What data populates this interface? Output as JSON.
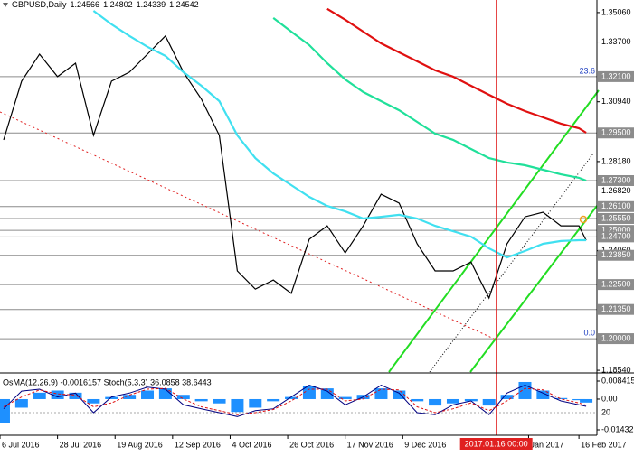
{
  "chart_data": [
    {
      "type": "line",
      "title": "GBPUSD,Daily",
      "ohlc": [
        1.24566,
        1.24802,
        1.24339,
        1.24542
      ],
      "x": [
        "2016-07-07",
        "2016-07-14",
        "2016-07-21",
        "2016-07-28",
        "2016-08-04",
        "2016-08-11",
        "2016-08-18",
        "2016-08-25",
        "2016-09-01",
        "2016-09-08",
        "2016-09-15",
        "2016-09-22",
        "2016-09-29",
        "2016-10-06",
        "2016-10-13",
        "2016-10-20",
        "2016-10-27",
        "2016-11-03",
        "2016-11-10",
        "2016-11-17",
        "2016-11-24",
        "2016-12-01",
        "2016-12-08",
        "2016-12-15",
        "2016-12-22",
        "2016-12-29",
        "2017-01-05",
        "2017-01-12",
        "2017-01-19",
        "2017-01-26",
        "2017-02-02",
        "2017-02-09",
        "2017-02-16",
        "2017-02-20"
      ],
      "series": [
        {
          "color": "#000000",
          "values": [
            1.2918,
            1.3189,
            1.3314,
            1.321,
            1.3272,
            1.2939,
            1.3189,
            1.3231,
            1.3314,
            1.3398,
            1.3231,
            1.3106,
            1.2939,
            1.2313,
            1.2229,
            1.2271,
            1.2209,
            1.2459,
            1.2521,
            1.2396,
            1.2521,
            1.2667,
            1.2626,
            1.2438,
            1.2313,
            1.2313,
            1.2354,
            1.2188,
            1.2438,
            1.2563,
            1.2584,
            1.2521,
            1.2521,
            1.24542
          ]
        },
        {
          "color": "#40e0f0",
          "values": [
            null,
            null,
            null,
            null,
            null,
            1.3514,
            1.3452,
            1.3398,
            1.3348,
            1.3306,
            1.3231,
            1.3168,
            1.3097,
            1.2939,
            1.2834,
            1.2763,
            1.2709,
            1.2655,
            1.2613,
            1.2588,
            1.2555,
            1.2563,
            1.2572,
            1.2555,
            1.2521,
            1.2496,
            1.2471,
            1.2417,
            1.2375,
            1.2405,
            1.2438,
            1.2451,
            1.2455,
            1.2455
          ]
        },
        {
          "color": "#20e09a",
          "values": [
            null,
            null,
            null,
            null,
            null,
            null,
            null,
            null,
            null,
            null,
            null,
            null,
            null,
            null,
            null,
            1.3481,
            1.3418,
            1.3356,
            1.3272,
            1.3197,
            1.3139,
            1.3097,
            1.3055,
            1.3001,
            1.2947,
            1.2918,
            1.2876,
            1.2834,
            1.2814,
            1.2801,
            1.278,
            1.2759,
            1.2743,
            1.273
          ]
        },
        {
          "color": "#e01010",
          "values": [
            null,
            null,
            null,
            null,
            null,
            null,
            null,
            null,
            null,
            null,
            null,
            null,
            null,
            null,
            null,
            null,
            null,
            null,
            1.3523,
            1.3473,
            1.3418,
            1.3364,
            1.3322,
            1.3281,
            1.3239,
            1.321,
            1.3168,
            1.3126,
            1.3085,
            1.3051,
            1.3022,
            1.2993,
            1.2972,
            1.2951
          ]
        }
      ],
      "xlim": [
        "2016-07-06",
        "2017-02-23"
      ],
      "xticks": [
        {
          "value": "2016-07-06",
          "label": "6 Jul 2016"
        },
        {
          "value": "2016-07-28",
          "label": "28 Jul 2016"
        },
        {
          "value": "2016-08-19",
          "label": "19 Aug 2016"
        },
        {
          "value": "2016-09-12",
          "label": "12 Sep 2016"
        },
        {
          "value": "2016-10-04",
          "label": "4 Oct 2016"
        },
        {
          "value": "2016-10-26",
          "label": "26 Oct 2016"
        },
        {
          "value": "2016-11-17",
          "label": "17 Nov 2016"
        },
        {
          "value": "2016-12-09",
          "label": "9 Dec 2016"
        },
        {
          "value": "2017-01-27",
          "label": "Jan 2017"
        },
        {
          "value": "2017-02-16",
          "label": "16 Feb 2017"
        }
      ],
      "ylim": [
        1.1846,
        1.3564
      ],
      "yticks": [
        {
          "value": 1.3506,
          "label": "1.35060"
        },
        {
          "value": 1.337,
          "label": "1.33700"
        },
        {
          "value": 1.3094,
          "label": "1.30940"
        },
        {
          "value": 1.2818,
          "label": "1.28180"
        },
        {
          "value": 1.2682,
          "label": "1.26820"
        },
        {
          "value": 1.2406,
          "label": "1.24060"
        },
        {
          "value": 1.1854,
          "label": "1.18540"
        }
      ],
      "levels": [
        {
          "value": 1.321,
          "label": "1.32100"
        },
        {
          "value": 1.295,
          "label": "1.29500"
        },
        {
          "value": 1.273,
          "label": "1.27300"
        },
        {
          "value": 1.261,
          "label": "1.26100"
        },
        {
          "value": 1.2555,
          "label": "1.25550"
        },
        {
          "value": 1.25,
          "label": "1.25000"
        },
        {
          "value": 1.247,
          "label": "1.24700"
        },
        {
          "value": 1.2385,
          "label": "1.23850"
        },
        {
          "value": 1.225,
          "label": "1.22500"
        },
        {
          "value": 1.2135,
          "label": "1.21350"
        },
        {
          "value": 1.2,
          "label": "1.20000"
        }
      ],
      "annotations": [
        {
          "value": 1.321,
          "label": "23.6"
        },
        {
          "value": 1.2,
          "label": "0.0"
        }
      ],
      "crosshair": {
        "x": "2017-01-16",
        "label": "2017.01.16 00:00"
      }
    },
    {
      "type": "indicator",
      "title": "OsMA(12,26,9) -0.0016157 Stoch(5,3,3) 36.0858 38.6443",
      "x": [
        "2016-07-07",
        "2016-07-14",
        "2016-07-21",
        "2016-07-28",
        "2016-08-04",
        "2016-08-11",
        "2016-08-18",
        "2016-08-25",
        "2016-09-01",
        "2016-09-08",
        "2016-09-15",
        "2016-09-22",
        "2016-09-29",
        "2016-10-06",
        "2016-10-13",
        "2016-10-20",
        "2016-10-27",
        "2016-11-03",
        "2016-11-10",
        "2016-11-17",
        "2016-11-24",
        "2016-12-01",
        "2016-12-08",
        "2016-12-15",
        "2016-12-22",
        "2016-12-29",
        "2017-01-05",
        "2017-01-12",
        "2017-01-19",
        "2017-01-26",
        "2017-02-02",
        "2017-02-09",
        "2017-02-16",
        "2017-02-20"
      ],
      "xlim": [
        "2016-07-06",
        "2017-02-23"
      ],
      "series": [
        {
          "color": "#1e90ff",
          "values": [
            -0.011,
            -0.004,
            0.003,
            0.004,
            0.003,
            -0.002,
            0.001,
            0.002,
            0.004,
            0.005,
            0.002,
            -0.001,
            -0.002,
            -0.006,
            -0.004,
            -0.001,
            0.001,
            0.006,
            0.005,
            0.001,
            0.002,
            0.005,
            0.004,
            -0.001,
            -0.003,
            -0.002,
            -0.001,
            -0.003,
            0.002,
            0.008,
            0.004,
            0.0005,
            -0.0005,
            -0.0016157
          ]
        },
        {
          "color": "#000080",
          "axis": "y2",
          "values": [
            30,
            75,
            80,
            60,
            70,
            20,
            60,
            70,
            85,
            80,
            40,
            30,
            20,
            10,
            25,
            30,
            60,
            90,
            75,
            40,
            60,
            90,
            70,
            20,
            15,
            40,
            50,
            15,
            70,
            90,
            70,
            50,
            40,
            36.0858
          ]
        },
        {
          "color": "#e01010",
          "axis": "y2",
          "values": [
            35,
            60,
            78,
            68,
            65,
            35,
            45,
            65,
            80,
            82,
            55,
            35,
            25,
            15,
            20,
            28,
            50,
            80,
            80,
            50,
            55,
            80,
            78,
            35,
            20,
            30,
            45,
            25,
            50,
            82,
            78,
            55,
            45,
            38.6443
          ]
        }
      ],
      "ylim": [
        -0.01685,
        0.01178
      ],
      "yticks": [
        0.008415,
        {
          "value": 0,
          "label": "0.00"
        },
        -0.01432
      ],
      "y2lim": [
        -37.6,
        119.1
      ],
      "y2ticks": [
        20
      ]
    }
  ]
}
